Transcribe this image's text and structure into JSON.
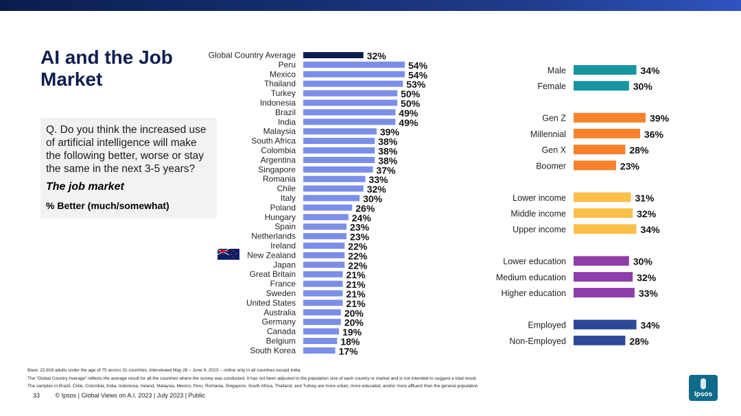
{
  "title": "AI and the Job Market",
  "question": {
    "text": "Q. Do you think the increased use of artificial intelligence will make the following better, worse or stay the same in the next 3-5 years?",
    "item": "The job market",
    "measure": "% Better (much/somewhat)"
  },
  "colors": {
    "highlight": "#0b1e4f",
    "country": "#7b8ee8",
    "gender": "#1495a0",
    "generation": "#f7822b",
    "income": "#fbbf4a",
    "education": "#8e3ea8",
    "employment": "#2c4899"
  },
  "chart_data": [
    {
      "type": "bar",
      "orientation": "horizontal",
      "title": "% Better (much/somewhat) — by country",
      "categories": [
        "Global Country Average",
        "Peru",
        "Mexico",
        "Thailand",
        "Turkey",
        "Indonesia",
        "Brazil",
        "India",
        "Malaysia",
        "South Africa",
        "Colombia",
        "Argentina",
        "Singapore",
        "Romania",
        "Chile",
        "Italy",
        "Poland",
        "Hungary",
        "Spain",
        "Netherlands",
        "Ireland",
        "New Zealand",
        "Japan",
        "Great Britain",
        "France",
        "Sweden",
        "United States",
        "Australia",
        "Germany",
        "Canada",
        "Belgium",
        "South Korea"
      ],
      "values": [
        32,
        54,
        54,
        53,
        50,
        50,
        49,
        49,
        39,
        38,
        38,
        38,
        37,
        33,
        32,
        30,
        26,
        24,
        23,
        23,
        22,
        22,
        22,
        21,
        21,
        21,
        21,
        20,
        20,
        19,
        18,
        17
      ],
      "labels": [
        "32%",
        "54%",
        "54%",
        "53%",
        "50%",
        "50%",
        "49%",
        "49%",
        "39%",
        "38%",
        "38%",
        "38%",
        "37%",
        "33%",
        "32%",
        "30%",
        "26%",
        "24%",
        "23%",
        "23%",
        "22%",
        "22%",
        "22%",
        "21%",
        "21%",
        "21%",
        "21%",
        "20%",
        "20%",
        "19%",
        "18%",
        "17%"
      ],
      "highlight_index": 0,
      "xlim": [
        0,
        54
      ]
    },
    {
      "type": "bar",
      "orientation": "horizontal",
      "title": "% Better (much/somewhat) — by demographic",
      "groups": [
        {
          "name": "gender",
          "color_key": "gender",
          "categories": [
            "Male",
            "Female"
          ],
          "values": [
            34,
            30
          ],
          "labels": [
            "34%",
            "30%"
          ]
        },
        {
          "name": "generation",
          "color_key": "generation",
          "categories": [
            "Gen Z",
            "Millennial",
            "Gen X",
            "Boomer"
          ],
          "values": [
            39,
            36,
            28,
            23
          ],
          "labels": [
            "39%",
            "36%",
            "28%",
            "23%"
          ]
        },
        {
          "name": "income",
          "color_key": "income",
          "categories": [
            "Lower income",
            "Middle income",
            "Upper income"
          ],
          "values": [
            31,
            32,
            34
          ],
          "labels": [
            "31%",
            "32%",
            "34%"
          ]
        },
        {
          "name": "education",
          "color_key": "education",
          "categories": [
            "Lower education",
            "Medium education",
            "Higher education"
          ],
          "values": [
            30,
            32,
            33
          ],
          "labels": [
            "30%",
            "32%",
            "33%"
          ]
        },
        {
          "name": "employment",
          "color_key": "employment",
          "categories": [
            "Employed",
            "Non-Employed"
          ],
          "values": [
            34,
            28
          ],
          "labels": [
            "34%",
            "28%"
          ]
        }
      ],
      "xlim": [
        0,
        39
      ]
    }
  ],
  "footnotes": [
    "Base: 22,816 adults under the age of 75 across 31 countries, interviewed May 26 – June 9, 2023 -- online only in all countries except India.",
    "The “Global Country Average” reflects the average result for all the countries where the survey was conducted. It has not been adjusted to the population size of each country or market and is not intended to suggest a total result.",
    "The samples in Brazil, Chile, Colombia, India, Indonesia, Ireland, Malaysia, Mexico, Peru, Romania, Singapore, South Africa, Thailand, and Turkey are more urban, more educated, and/or more affluent than the general population"
  ],
  "footer": {
    "page_number": "33",
    "copyright": "© Ipsos | Global Views on A.I. 2023 | July 2023 | Public"
  },
  "logo": {
    "text": "Ipsos"
  }
}
